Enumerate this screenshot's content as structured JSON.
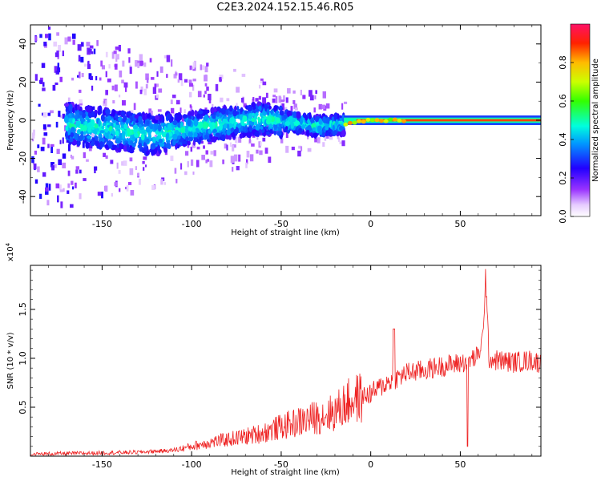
{
  "title": "C2E3.2024.152.15.46.R05",
  "chart_data": [
    {
      "type": "heatmap",
      "xlabel": "Height of straight line (km)",
      "ylabel": "Frequency (Hz)",
      "xlim": [
        -190,
        95
      ],
      "ylim": [
        -50,
        50
      ],
      "xticks": [
        -150,
        -100,
        -50,
        0,
        50
      ],
      "yticks": [
        -40,
        -20,
        0,
        20,
        40
      ],
      "colorbar": {
        "label": "Normalized spectral amplitude",
        "range": [
          0,
          1
        ],
        "ticks": [
          0.0,
          0.2,
          0.4,
          0.6,
          0.8
        ]
      },
      "ridge": [
        {
          "x": -160,
          "y": -3
        },
        {
          "x": -120,
          "y": -8
        },
        {
          "x": -100,
          "y": -4
        },
        {
          "x": -60,
          "y": 1
        },
        {
          "x": -30,
          "y": -3
        },
        {
          "x": -15,
          "y": -2
        },
        {
          "x": 0,
          "y": 0
        },
        {
          "x": 95,
          "y": 0
        }
      ]
    },
    {
      "type": "line",
      "xlabel": "Height of straight line (km)",
      "ylabel": "SNR (10 * v/v)",
      "yscale_note": "(x10^4)",
      "scale_base": "x10",
      "scale_exp": "4",
      "xlim": [
        -190,
        95
      ],
      "ylim": [
        0,
        1.95
      ],
      "xticks": [
        -150,
        -100,
        -50,
        0,
        50
      ],
      "yticks": [
        0.5,
        1.0,
        1.5
      ],
      "series": [
        {
          "color": "#ee2222",
          "x": [
            -190,
            -160,
            -130,
            -110,
            -100,
            -90,
            -80,
            -70,
            -60,
            -50,
            -40,
            -30,
            -20,
            -15,
            -10,
            -5,
            0,
            5,
            10,
            15,
            20,
            30,
            40,
            50,
            55,
            60,
            63,
            64,
            66,
            70,
            80,
            90,
            95
          ],
          "values": [
            0.02,
            0.03,
            0.04,
            0.06,
            0.1,
            0.14,
            0.17,
            0.2,
            0.24,
            0.3,
            0.35,
            0.4,
            0.45,
            0.52,
            0.58,
            0.6,
            0.64,
            0.7,
            0.76,
            0.8,
            0.85,
            0.88,
            0.92,
            0.95,
            0.98,
            1.02,
            1.25,
            1.9,
            1.0,
            0.98,
            0.96,
            0.98,
            0.95
          ]
        }
      ]
    }
  ]
}
